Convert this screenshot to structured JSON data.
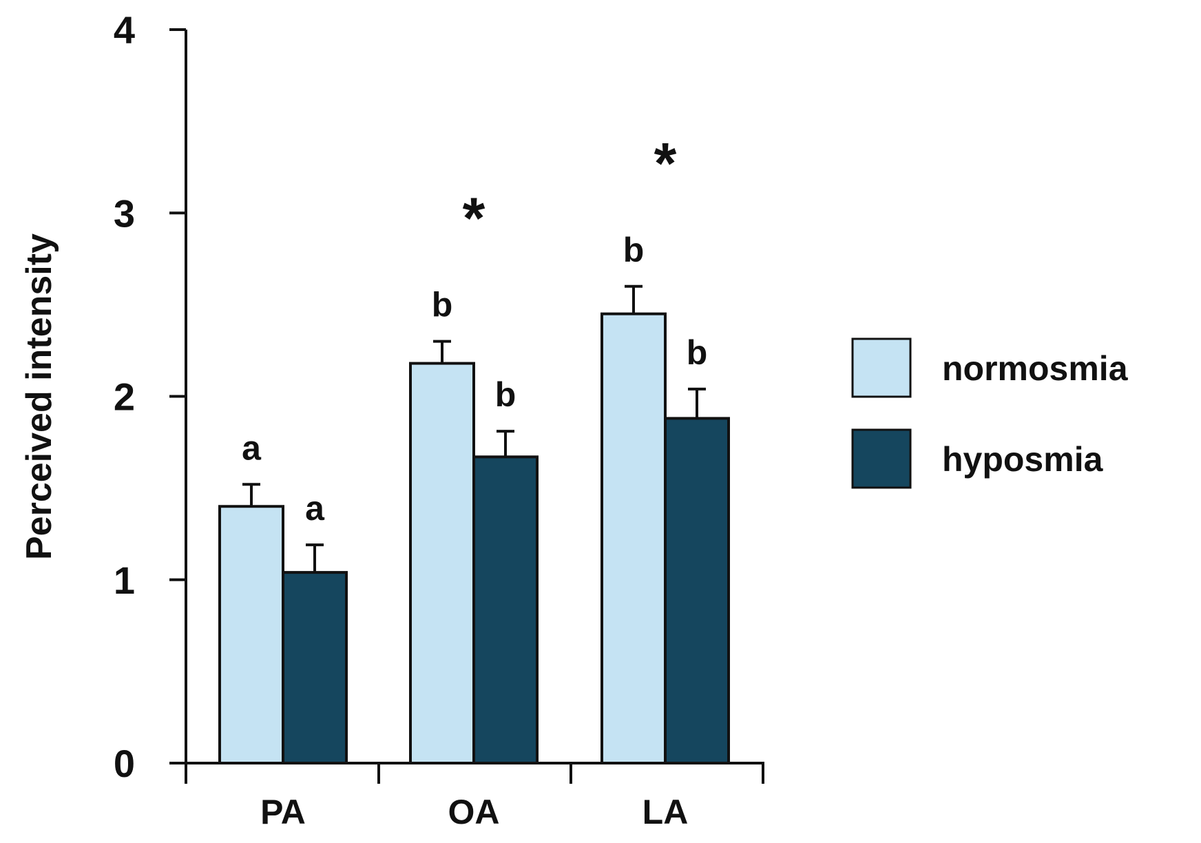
{
  "chart_data": {
    "type": "bar",
    "title": "",
    "xlabel": "",
    "ylabel": "Perceived intensity",
    "ylim": [
      0,
      4
    ],
    "yticks": [
      "0",
      "1",
      "2",
      "3",
      "4"
    ],
    "categories": [
      "PA",
      "OA",
      "LA"
    ],
    "series": [
      {
        "name": "normosmia",
        "color": "#c5e3f3",
        "values": [
          1.4,
          2.18,
          2.45
        ],
        "errors": [
          0.12,
          0.12,
          0.15
        ],
        "letters": [
          "a",
          "b",
          "b"
        ]
      },
      {
        "name": "hyposmia",
        "color": "#15465e",
        "values": [
          1.04,
          1.67,
          1.88
        ],
        "errors": [
          0.15,
          0.14,
          0.16
        ],
        "letters": [
          "a",
          "b",
          "b"
        ]
      }
    ],
    "significance": [
      "",
      "*",
      "*"
    ],
    "legend_position": "right"
  }
}
